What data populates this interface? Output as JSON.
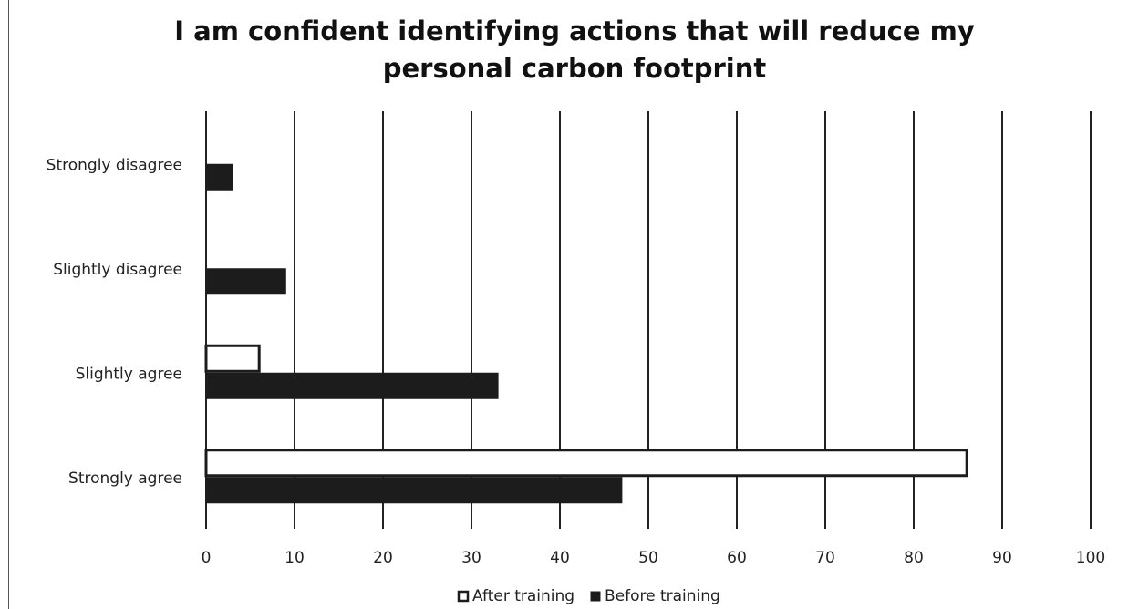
{
  "chart_data": {
    "type": "bar",
    "orientation": "horizontal",
    "title_lines": [
      "I am confident identifying actions that will reduce my",
      "personal carbon footprint"
    ],
    "categories": [
      "Strongly disagree",
      "Slightly disagree",
      "Slightly agree",
      "Strongly agree"
    ],
    "series": [
      {
        "name": "After training",
        "values": [
          0,
          0,
          6,
          86
        ],
        "color": "#ffffff"
      },
      {
        "name": "Before training",
        "values": [
          3,
          9,
          33,
          47
        ],
        "color": "#1c1c1c"
      }
    ],
    "xlim": [
      0,
      100
    ],
    "xticks": [
      0,
      10,
      20,
      30,
      40,
      50,
      60,
      70,
      80,
      90,
      100
    ],
    "grid": "vertical",
    "legend_position": "bottom"
  }
}
